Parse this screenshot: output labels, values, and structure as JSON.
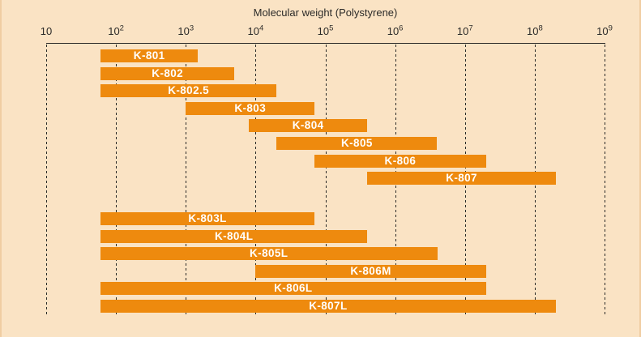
{
  "figure": {
    "title": "Molecular weight (Polystyrene)"
  },
  "colors": {
    "background": "#FAE3C4",
    "bar": "#EE8A0E",
    "axis_and_text": "#2B2A28",
    "bar_label_text": "#FFFFFF",
    "edge_border": "#F0CDA2"
  },
  "chart_data": {
    "type": "bar",
    "subtype": "horizontal-log-range-bars",
    "title": "Molecular weight (Polystyrene)",
    "xlabel": "Molecular weight (Polystyrene)",
    "xscale": "log10",
    "xlim": [
      10,
      1000000000
    ],
    "grid": "vertical-dashed",
    "legend": "none",
    "x_ticks": [
      {
        "value": 10,
        "base": "10",
        "exp": ""
      },
      {
        "value": 100,
        "base": "10",
        "exp": "2"
      },
      {
        "value": 1000,
        "base": "10",
        "exp": "3"
      },
      {
        "value": 10000,
        "base": "10",
        "exp": "4"
      },
      {
        "value": 100000,
        "base": "10",
        "exp": "5"
      },
      {
        "value": 1000000,
        "base": "10",
        "exp": "6"
      },
      {
        "value": 10000000,
        "base": "10",
        "exp": "7"
      },
      {
        "value": 100000000,
        "base": "10",
        "exp": "8"
      },
      {
        "value": 1000000000,
        "base": "10",
        "exp": "9"
      }
    ],
    "series": [
      {
        "label": "K-801",
        "mw_min": 60,
        "mw_max": 1500,
        "group": "A"
      },
      {
        "label": "K-802",
        "mw_min": 60,
        "mw_max": 5000,
        "group": "A"
      },
      {
        "label": "K-802.5",
        "mw_min": 60,
        "mw_max": 20000,
        "group": "A"
      },
      {
        "label": "K-803",
        "mw_min": 1000,
        "mw_max": 70000,
        "group": "A"
      },
      {
        "label": "K-804",
        "mw_min": 8000,
        "mw_max": 400000,
        "group": "A"
      },
      {
        "label": "K-805",
        "mw_min": 20000,
        "mw_max": 4000000,
        "group": "A"
      },
      {
        "label": "K-806",
        "mw_min": 70000,
        "mw_max": 20000000,
        "group": "A"
      },
      {
        "label": "K-807",
        "mw_min": 400000,
        "mw_max": 200000000,
        "group": "A"
      },
      {
        "label": "K-803L",
        "mw_min": 60,
        "mw_max": 70000,
        "group": "B"
      },
      {
        "label": "K-804L",
        "mw_min": 60,
        "mw_max": 400000,
        "group": "B"
      },
      {
        "label": "K-805L",
        "mw_min": 60,
        "mw_max": 4000000,
        "group": "B"
      },
      {
        "label": "K-806M",
        "mw_min": 10000,
        "mw_max": 20000000,
        "group": "B"
      },
      {
        "label": "K-806L",
        "mw_min": 60,
        "mw_max": 20000000,
        "group": "B"
      },
      {
        "label": "K-807L",
        "mw_min": 60,
        "mw_max": 200000000,
        "group": "B"
      }
    ]
  }
}
